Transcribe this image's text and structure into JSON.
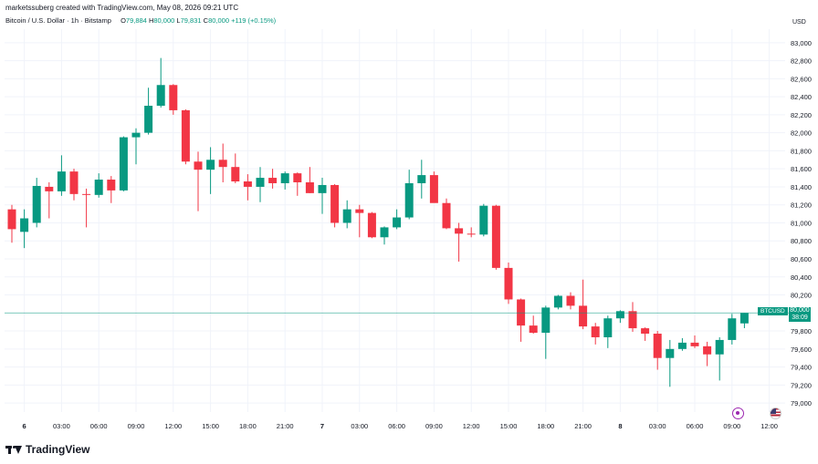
{
  "header": {
    "created_by": "marketssuberg created with TradingView.com, May 08, 2026 09:21 UTC",
    "symbol": "Bitcoin / U.S. Dollar · 1h · Bitstamp",
    "o_label": "O",
    "o_value": "79,884",
    "h_label": "H",
    "h_value": "80,000",
    "l_label": "L",
    "l_value": "79,831",
    "c_label": "C",
    "c_value": "80,000",
    "change": "+119 (+0.15%)"
  },
  "price_axis": {
    "currency": "USD",
    "ticks": [
      "83,000",
      "82,800",
      "82,600",
      "82,400",
      "82,200",
      "82,000",
      "81,800",
      "81,600",
      "81,400",
      "81,200",
      "81,000",
      "80,800",
      "80,600",
      "80,400",
      "80,200",
      "79,800",
      "79,600",
      "79,400",
      "79,200",
      "79,000"
    ]
  },
  "current_price": {
    "symbol": "BTCUSD",
    "price": "80,000",
    "countdown": "38:09"
  },
  "time_axis": {
    "ticks": [
      "6",
      "03:00",
      "06:00",
      "09:00",
      "12:00",
      "15:00",
      "18:00",
      "21:00",
      "7",
      "03:00",
      "06:00",
      "09:00",
      "12:00",
      "15:00",
      "18:00",
      "21:00",
      "8",
      "03:00",
      "06:00",
      "09:00",
      "12:00"
    ]
  },
  "colors": {
    "up": "#089981",
    "down": "#f23645",
    "grid": "#f0f3fa",
    "price_line": "#089981"
  },
  "footer": {
    "brand": "TradingView"
  },
  "icons": [
    "tradingview-logo-icon",
    "economic-event-icon",
    "us-flag-icon"
  ],
  "chart_data": {
    "type": "candlestick",
    "y_range": [
      78900,
      83150
    ],
    "ylabel": "USD",
    "candles": [
      {
        "o": 81150,
        "h": 81200,
        "l": 80780,
        "c": 80930
      },
      {
        "o": 80900,
        "h": 81150,
        "l": 80720,
        "c": 81050
      },
      {
        "o": 81000,
        "h": 81500,
        "l": 80950,
        "c": 81410
      },
      {
        "o": 81400,
        "h": 81450,
        "l": 81050,
        "c": 81350
      },
      {
        "o": 81350,
        "h": 81750,
        "l": 81300,
        "c": 81570
      },
      {
        "o": 81570,
        "h": 81600,
        "l": 81250,
        "c": 81320
      },
      {
        "o": 81320,
        "h": 81380,
        "l": 80950,
        "c": 81310
      },
      {
        "o": 81310,
        "h": 81550,
        "l": 81280,
        "c": 81480
      },
      {
        "o": 81480,
        "h": 81520,
        "l": 81220,
        "c": 81360
      },
      {
        "o": 81360,
        "h": 81960,
        "l": 81350,
        "c": 81950
      },
      {
        "o": 81950,
        "h": 82050,
        "l": 81650,
        "c": 82000
      },
      {
        "o": 82000,
        "h": 82500,
        "l": 81980,
        "c": 82300
      },
      {
        "o": 82300,
        "h": 82830,
        "l": 82280,
        "c": 82530
      },
      {
        "o": 82530,
        "h": 82540,
        "l": 82200,
        "c": 82250
      },
      {
        "o": 82250,
        "h": 82260,
        "l": 81650,
        "c": 81680
      },
      {
        "o": 81680,
        "h": 81790,
        "l": 81130,
        "c": 81590
      },
      {
        "o": 81590,
        "h": 81840,
        "l": 81320,
        "c": 81700
      },
      {
        "o": 81700,
        "h": 81880,
        "l": 81450,
        "c": 81620
      },
      {
        "o": 81620,
        "h": 81770,
        "l": 81440,
        "c": 81460
      },
      {
        "o": 81460,
        "h": 81540,
        "l": 81250,
        "c": 81400
      },
      {
        "o": 81400,
        "h": 81620,
        "l": 81230,
        "c": 81500
      },
      {
        "o": 81500,
        "h": 81600,
        "l": 81380,
        "c": 81440
      },
      {
        "o": 81440,
        "h": 81570,
        "l": 81370,
        "c": 81550
      },
      {
        "o": 81550,
        "h": 81560,
        "l": 81300,
        "c": 81450
      },
      {
        "o": 81450,
        "h": 81620,
        "l": 81330,
        "c": 81330
      },
      {
        "o": 81330,
        "h": 81500,
        "l": 81100,
        "c": 81420
      },
      {
        "o": 81420,
        "h": 81430,
        "l": 80950,
        "c": 81000
      },
      {
        "o": 81000,
        "h": 81250,
        "l": 80940,
        "c": 81150
      },
      {
        "o": 81150,
        "h": 81200,
        "l": 80840,
        "c": 81110
      },
      {
        "o": 81110,
        "h": 81120,
        "l": 80830,
        "c": 80840
      },
      {
        "o": 80840,
        "h": 80960,
        "l": 80760,
        "c": 80950
      },
      {
        "o": 80950,
        "h": 81150,
        "l": 80930,
        "c": 81060
      },
      {
        "o": 81060,
        "h": 81590,
        "l": 81040,
        "c": 81440
      },
      {
        "o": 81440,
        "h": 81700,
        "l": 81270,
        "c": 81530
      },
      {
        "o": 81530,
        "h": 81570,
        "l": 81230,
        "c": 81220
      },
      {
        "o": 81220,
        "h": 81270,
        "l": 80930,
        "c": 80940
      },
      {
        "o": 80940,
        "h": 81000,
        "l": 80570,
        "c": 80880
      },
      {
        "o": 80880,
        "h": 80950,
        "l": 80840,
        "c": 80870
      },
      {
        "o": 80870,
        "h": 81210,
        "l": 80850,
        "c": 81190
      },
      {
        "o": 81190,
        "h": 81200,
        "l": 80480,
        "c": 80500
      },
      {
        "o": 80500,
        "h": 80560,
        "l": 80100,
        "c": 80150
      },
      {
        "o": 80150,
        "h": 80160,
        "l": 79680,
        "c": 79860
      },
      {
        "o": 79860,
        "h": 79970,
        "l": 79770,
        "c": 79780
      },
      {
        "o": 79780,
        "h": 80080,
        "l": 79490,
        "c": 80060
      },
      {
        "o": 80060,
        "h": 80200,
        "l": 80040,
        "c": 80190
      },
      {
        "o": 80190,
        "h": 80230,
        "l": 80040,
        "c": 80080
      },
      {
        "o": 80080,
        "h": 80370,
        "l": 79820,
        "c": 79850
      },
      {
        "o": 79850,
        "h": 79890,
        "l": 79650,
        "c": 79730
      },
      {
        "o": 79730,
        "h": 79970,
        "l": 79610,
        "c": 79940
      },
      {
        "o": 79940,
        "h": 80030,
        "l": 79890,
        "c": 80020
      },
      {
        "o": 80020,
        "h": 80120,
        "l": 79790,
        "c": 79830
      },
      {
        "o": 79830,
        "h": 79840,
        "l": 79690,
        "c": 79770
      },
      {
        "o": 79770,
        "h": 79800,
        "l": 79370,
        "c": 79500
      },
      {
        "o": 79500,
        "h": 79700,
        "l": 79180,
        "c": 79600
      },
      {
        "o": 79600,
        "h": 79720,
        "l": 79580,
        "c": 79670
      },
      {
        "o": 79670,
        "h": 79750,
        "l": 79610,
        "c": 79630
      },
      {
        "o": 79630,
        "h": 79680,
        "l": 79410,
        "c": 79540
      },
      {
        "o": 79540,
        "h": 79730,
        "l": 79250,
        "c": 79700
      },
      {
        "o": 79700,
        "h": 79990,
        "l": 79650,
        "c": 79940
      },
      {
        "o": 79884,
        "h": 80000,
        "l": 79831,
        "c": 80000
      }
    ]
  }
}
